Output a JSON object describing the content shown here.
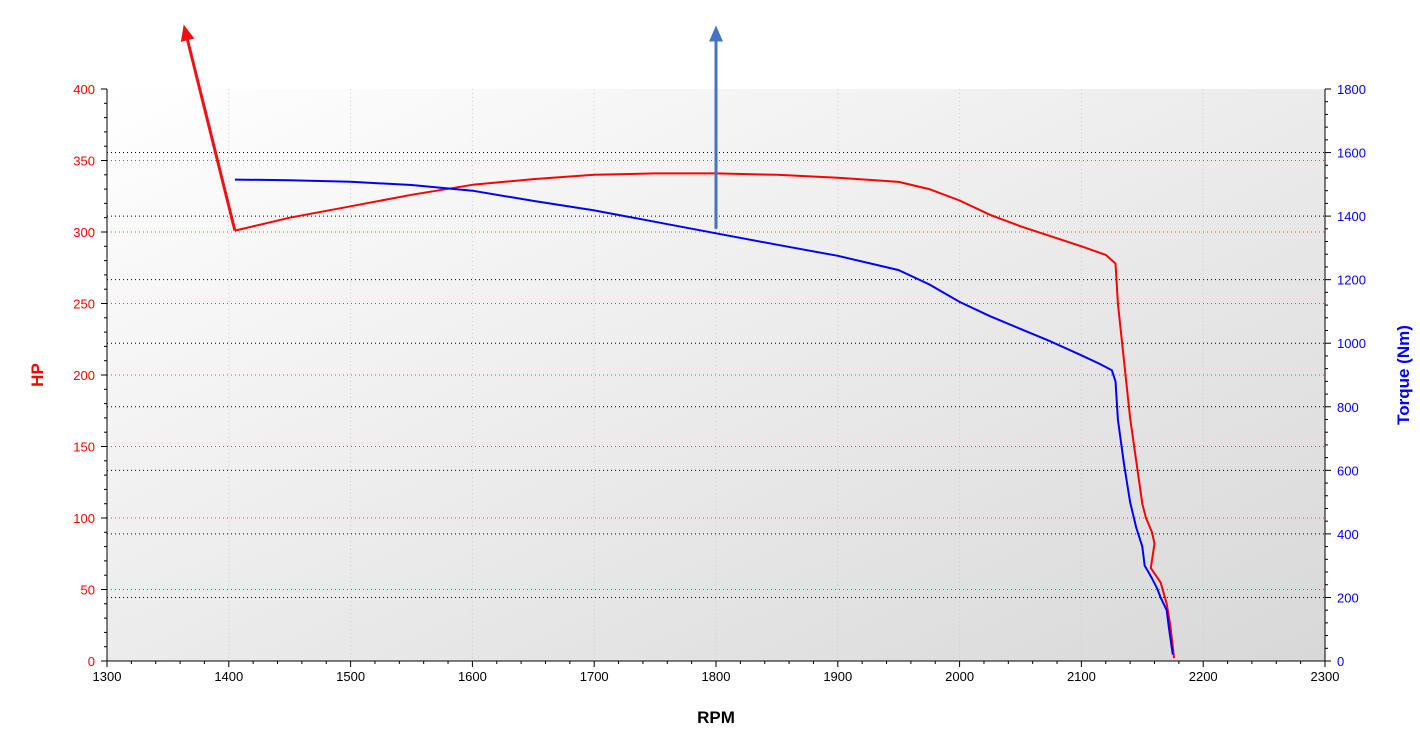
{
  "chart_data": {
    "type": "line",
    "xlabel": "RPM",
    "ylabel_left": "HP",
    "ylabel_right": "Torque (Nm)",
    "xlim": [
      1300,
      2300
    ],
    "ylim_left": [
      0,
      400
    ],
    "ylim_right": [
      0,
      1800
    ],
    "x_ticks": [
      "1300",
      "1400",
      "1500",
      "1600",
      "1700",
      "1800",
      "1900",
      "2000",
      "2100",
      "2200",
      "2300"
    ],
    "y_left_ticks": [
      "0",
      "50",
      "100",
      "150",
      "200",
      "250",
      "300",
      "350",
      "400"
    ],
    "y_right_ticks": [
      "0",
      "200",
      "400",
      "600",
      "800",
      "1000",
      "1200",
      "1400",
      "1600",
      "1800"
    ],
    "grid": true,
    "legend": "none",
    "colors": {
      "hp": "#ff0000",
      "torque": "#0000ff",
      "left_axis": "#ff0000",
      "right_axis": "#0000ff",
      "arrow_hp": "#ee1111",
      "arrow_torque": "#4472c4"
    },
    "series": [
      {
        "key": "hp",
        "axis": "left",
        "x": [
          1405,
          1450,
          1500,
          1550,
          1600,
          1650,
          1700,
          1750,
          1800,
          1850,
          1900,
          1950,
          1975,
          2000,
          2025,
          2050,
          2075,
          2100,
          2120,
          2128,
          2130,
          2135,
          2140,
          2145,
          2150,
          2153,
          2158,
          2160,
          2157,
          2165,
          2170,
          2173,
          2175,
          2176
        ],
        "values": [
          301,
          310,
          318,
          326,
          333,
          337,
          340,
          341,
          341,
          340,
          338,
          335,
          330,
          322,
          312,
          304,
          297,
          290,
          284,
          278,
          250,
          210,
          170,
          140,
          110,
          100,
          90,
          82,
          65,
          55,
          40,
          25,
          10,
          2
        ]
      },
      {
        "key": "torque",
        "axis": "right",
        "x": [
          1405,
          1450,
          1500,
          1550,
          1600,
          1650,
          1700,
          1750,
          1800,
          1850,
          1900,
          1950,
          1975,
          2000,
          2025,
          2050,
          2075,
          2100,
          2115,
          2125,
          2128,
          2130,
          2135,
          2140,
          2145,
          2150,
          2152,
          2155,
          2158,
          2162,
          2165,
          2170,
          2172,
          2175
        ],
        "values": [
          1515,
          1513,
          1508,
          1498,
          1480,
          1448,
          1418,
          1382,
          1346,
          1310,
          1275,
          1230,
          1185,
          1130,
          1085,
          1045,
          1005,
          962,
          935,
          915,
          880,
          760,
          620,
          500,
          420,
          360,
          300,
          280,
          260,
          230,
          200,
          160,
          100,
          20
        ]
      }
    ],
    "annotations": [
      {
        "type": "arrow",
        "color_key": "arrow_hp",
        "from": [
          1405,
          301
        ],
        "to": [
          1363,
          445
        ],
        "axis": "left"
      },
      {
        "type": "arrow",
        "color_key": "arrow_torque",
        "from": [
          1800,
          1360
        ],
        "to": [
          1800,
          2000
        ],
        "axis": "right"
      }
    ]
  }
}
